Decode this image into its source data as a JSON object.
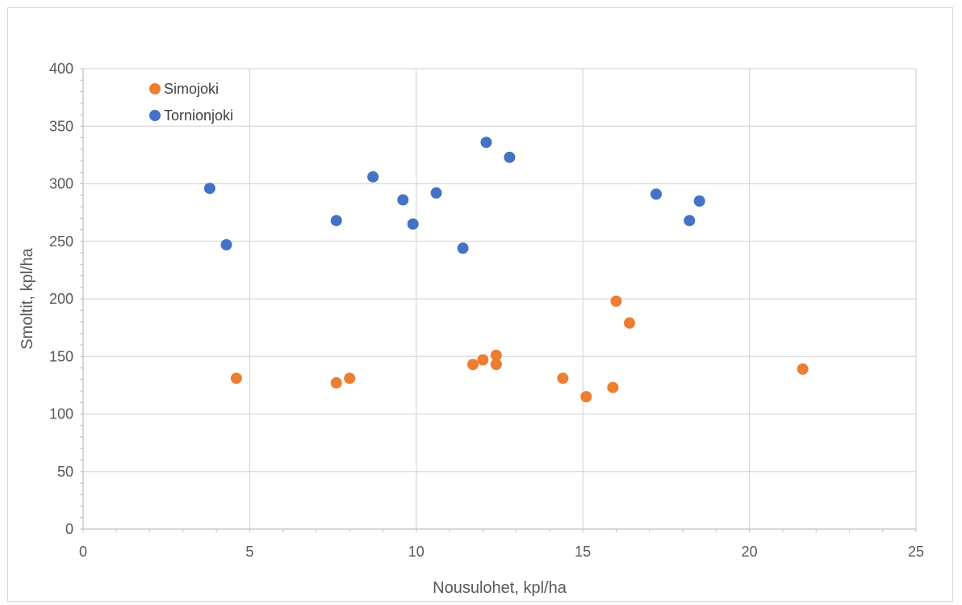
{
  "chart_data": {
    "type": "scatter",
    "title": "",
    "xlabel": "Nousulohet, kpl/ha",
    "ylabel": "Smoltit, kpl/ha",
    "xlim": [
      0,
      25
    ],
    "ylim": [
      0,
      400
    ],
    "xticks": [
      0,
      5,
      10,
      15,
      20,
      25
    ],
    "yticks": [
      0,
      50,
      100,
      150,
      200,
      250,
      300,
      350,
      400
    ],
    "grid": true,
    "legend_position": "top-left",
    "series": [
      {
        "name": "Simojoki",
        "color": "#ED7D31",
        "points": [
          [
            4.6,
            131
          ],
          [
            7.6,
            127
          ],
          [
            8.0,
            131
          ],
          [
            11.7,
            143
          ],
          [
            12.0,
            147
          ],
          [
            12.4,
            151
          ],
          [
            12.4,
            143
          ],
          [
            14.4,
            131
          ],
          [
            15.1,
            115
          ],
          [
            15.9,
            123
          ],
          [
            16.0,
            198
          ],
          [
            16.4,
            179
          ],
          [
            21.6,
            139
          ]
        ]
      },
      {
        "name": "Tornionjoki",
        "color": "#4472C4",
        "points": [
          [
            3.8,
            296
          ],
          [
            4.3,
            247
          ],
          [
            7.6,
            268
          ],
          [
            8.7,
            306
          ],
          [
            9.6,
            286
          ],
          [
            9.9,
            265
          ],
          [
            10.6,
            292
          ],
          [
            11.4,
            244
          ],
          [
            12.1,
            336
          ],
          [
            12.8,
            323
          ],
          [
            17.2,
            291
          ],
          [
            18.2,
            268
          ],
          [
            18.5,
            285
          ]
        ]
      }
    ]
  }
}
